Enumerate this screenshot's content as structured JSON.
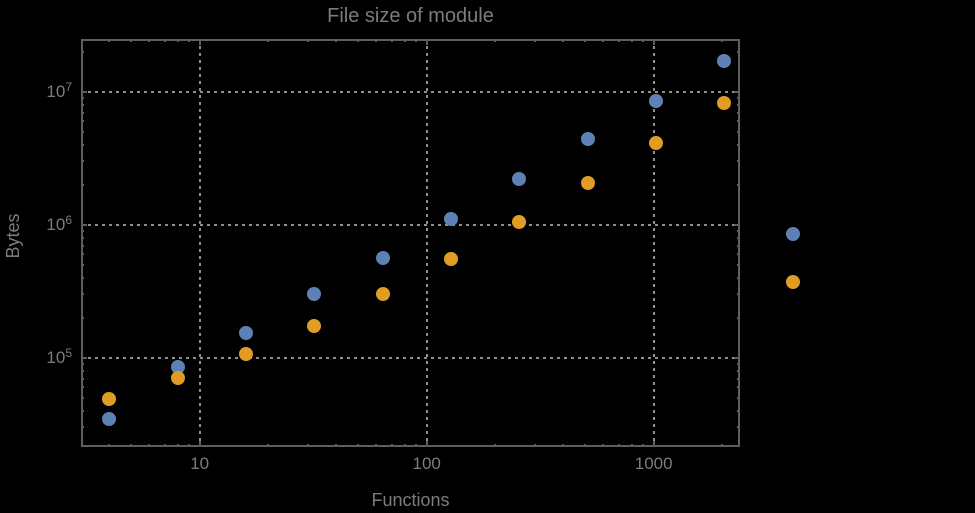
{
  "colors": {
    "background": "#000000",
    "frame": "#5e5e5e",
    "grid": "#8f8f8f",
    "text": "#7c7c7c",
    "series_blue": "#5e81b5",
    "series_orange": "#e19c24"
  },
  "chart_data": {
    "type": "scatter",
    "title": "File size of module",
    "xlabel": "Functions",
    "ylabel": "Bytes",
    "x_scale": "log",
    "y_scale": "log",
    "xlim": [
      3,
      2400
    ],
    "ylim": [
      21400,
      25000000
    ],
    "grid": "dotted major gridlines, both axes",
    "legend": "none",
    "frame": "box with mirrored inward ticks",
    "x_major_ticks": [
      10,
      100,
      1000
    ],
    "x_major_tick_labels": [
      "10",
      "100",
      "1000"
    ],
    "y_major_ticks": [
      100000,
      1000000,
      10000000
    ],
    "y_major_tick_labels": [
      "10^5",
      "10^6",
      "10^7"
    ],
    "note": "rightmost two points (x=4096) are drawn outside the plot frame",
    "x": [
      4,
      8,
      16,
      32,
      64,
      128,
      256,
      512,
      1024,
      2048,
      4096
    ],
    "series": [
      {
        "name": "blue",
        "color": "#5e81b5",
        "values": [
          35000,
          86000,
          155000,
          300000,
          560000,
          1100000,
          2200000,
          4400000,
          8500000,
          17000000,
          860000
        ]
      },
      {
        "name": "orange",
        "color": "#e19c24",
        "values": [
          49000,
          71000,
          107000,
          175000,
          300000,
          550000,
          1050000,
          2050000,
          4100000,
          8300000,
          370000
        ]
      }
    ]
  }
}
